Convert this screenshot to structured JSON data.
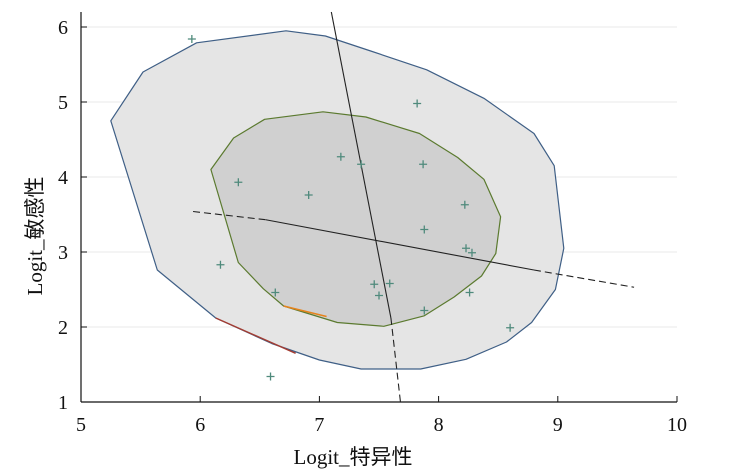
{
  "chart_data": {
    "type": "scatter",
    "title": "",
    "xlabel": "Logit_特异性",
    "ylabel": "Logit_敏感性",
    "xlim": [
      5,
      10
    ],
    "ylim": [
      1,
      6.2
    ],
    "x_ticks": [
      5,
      6,
      7,
      8,
      9,
      10
    ],
    "y_ticks": [
      1,
      2,
      3,
      4,
      5,
      6
    ],
    "x_tick_labels": [
      "5",
      "6",
      "7",
      "8",
      "9",
      "10"
    ],
    "y_tick_labels": [
      "1",
      "2",
      "3",
      "4",
      "5",
      "6"
    ],
    "grid": "horizontal",
    "legend": "none",
    "points": [
      {
        "x": 5.93,
        "y": 5.84
      },
      {
        "x": 7.82,
        "y": 4.98
      },
      {
        "x": 7.18,
        "y": 4.27
      },
      {
        "x": 7.35,
        "y": 4.17
      },
      {
        "x": 7.87,
        "y": 4.17
      },
      {
        "x": 6.32,
        "y": 3.93
      },
      {
        "x": 6.91,
        "y": 3.76
      },
      {
        "x": 8.22,
        "y": 3.63
      },
      {
        "x": 7.88,
        "y": 3.3
      },
      {
        "x": 8.23,
        "y": 3.05
      },
      {
        "x": 8.28,
        "y": 2.99
      },
      {
        "x": 6.17,
        "y": 2.83
      },
      {
        "x": 7.46,
        "y": 2.57
      },
      {
        "x": 7.59,
        "y": 2.58
      },
      {
        "x": 6.63,
        "y": 2.46
      },
      {
        "x": 8.26,
        "y": 2.46
      },
      {
        "x": 7.5,
        "y": 2.42
      },
      {
        "x": 7.88,
        "y": 2.22
      },
      {
        "x": 8.6,
        "y": 1.99
      },
      {
        "x": 6.59,
        "y": 1.34
      }
    ],
    "outer_region": [
      [
        5.25,
        4.75
      ],
      [
        5.52,
        5.4
      ],
      [
        5.97,
        5.79
      ],
      [
        6.72,
        5.95
      ],
      [
        7.05,
        5.88
      ],
      [
        7.43,
        5.68
      ],
      [
        7.9,
        5.43
      ],
      [
        8.38,
        5.05
      ],
      [
        8.8,
        4.58
      ],
      [
        8.97,
        4.15
      ],
      [
        9.05,
        3.05
      ],
      [
        8.98,
        2.5
      ],
      [
        8.78,
        2.06
      ],
      [
        8.57,
        1.8
      ],
      [
        8.23,
        1.57
      ],
      [
        7.85,
        1.44
      ],
      [
        7.35,
        1.44
      ],
      [
        7.0,
        1.56
      ],
      [
        6.6,
        1.78
      ],
      [
        6.13,
        2.12
      ],
      [
        5.64,
        2.76
      ],
      [
        5.25,
        4.75
      ]
    ],
    "inner_region": [
      [
        6.09,
        4.1
      ],
      [
        6.28,
        4.52
      ],
      [
        6.54,
        4.77
      ],
      [
        7.03,
        4.87
      ],
      [
        7.39,
        4.8
      ],
      [
        7.84,
        4.58
      ],
      [
        8.16,
        4.26
      ],
      [
        8.38,
        3.97
      ],
      [
        8.52,
        3.47
      ],
      [
        8.48,
        2.98
      ],
      [
        8.36,
        2.68
      ],
      [
        8.13,
        2.4
      ],
      [
        7.88,
        2.15
      ],
      [
        7.54,
        2.01
      ],
      [
        7.15,
        2.06
      ],
      [
        6.7,
        2.28
      ],
      [
        6.53,
        2.51
      ],
      [
        6.32,
        2.86
      ],
      [
        6.09,
        4.1
      ]
    ],
    "outer_highlight": [
      [
        6.13,
        2.12
      ],
      [
        6.8,
        1.65
      ]
    ],
    "inner_highlight": [
      [
        6.7,
        2.28
      ],
      [
        7.06,
        2.14
      ]
    ],
    "vertical_line": {
      "solid": [
        [
          7.1,
          6.2
        ],
        [
          7.6,
          2.12
        ]
      ],
      "dashed": [
        [
          7.6,
          2.12
        ],
        [
          7.68,
          1.0
        ]
      ]
    },
    "horizontal_line": {
      "solid": [
        [
          6.55,
          3.43
        ],
        [
          8.8,
          2.76
        ]
      ],
      "dashed_left": [
        [
          5.94,
          3.54
        ],
        [
          6.55,
          3.43
        ]
      ],
      "dashed_right": [
        [
          8.8,
          2.76
        ],
        [
          9.64,
          2.53
        ]
      ]
    },
    "colors": {
      "outer_fill": "#e5e5e5",
      "outer_stroke": "#3f5f86",
      "inner_fill": "#d0d0d0",
      "inner_stroke": "#5b7a2f",
      "outer_highlight": "#a33c32",
      "inner_highlight": "#e6831c",
      "points": "#4f8a7c",
      "lines": "#222222",
      "grid": "#e9e9e9"
    }
  }
}
